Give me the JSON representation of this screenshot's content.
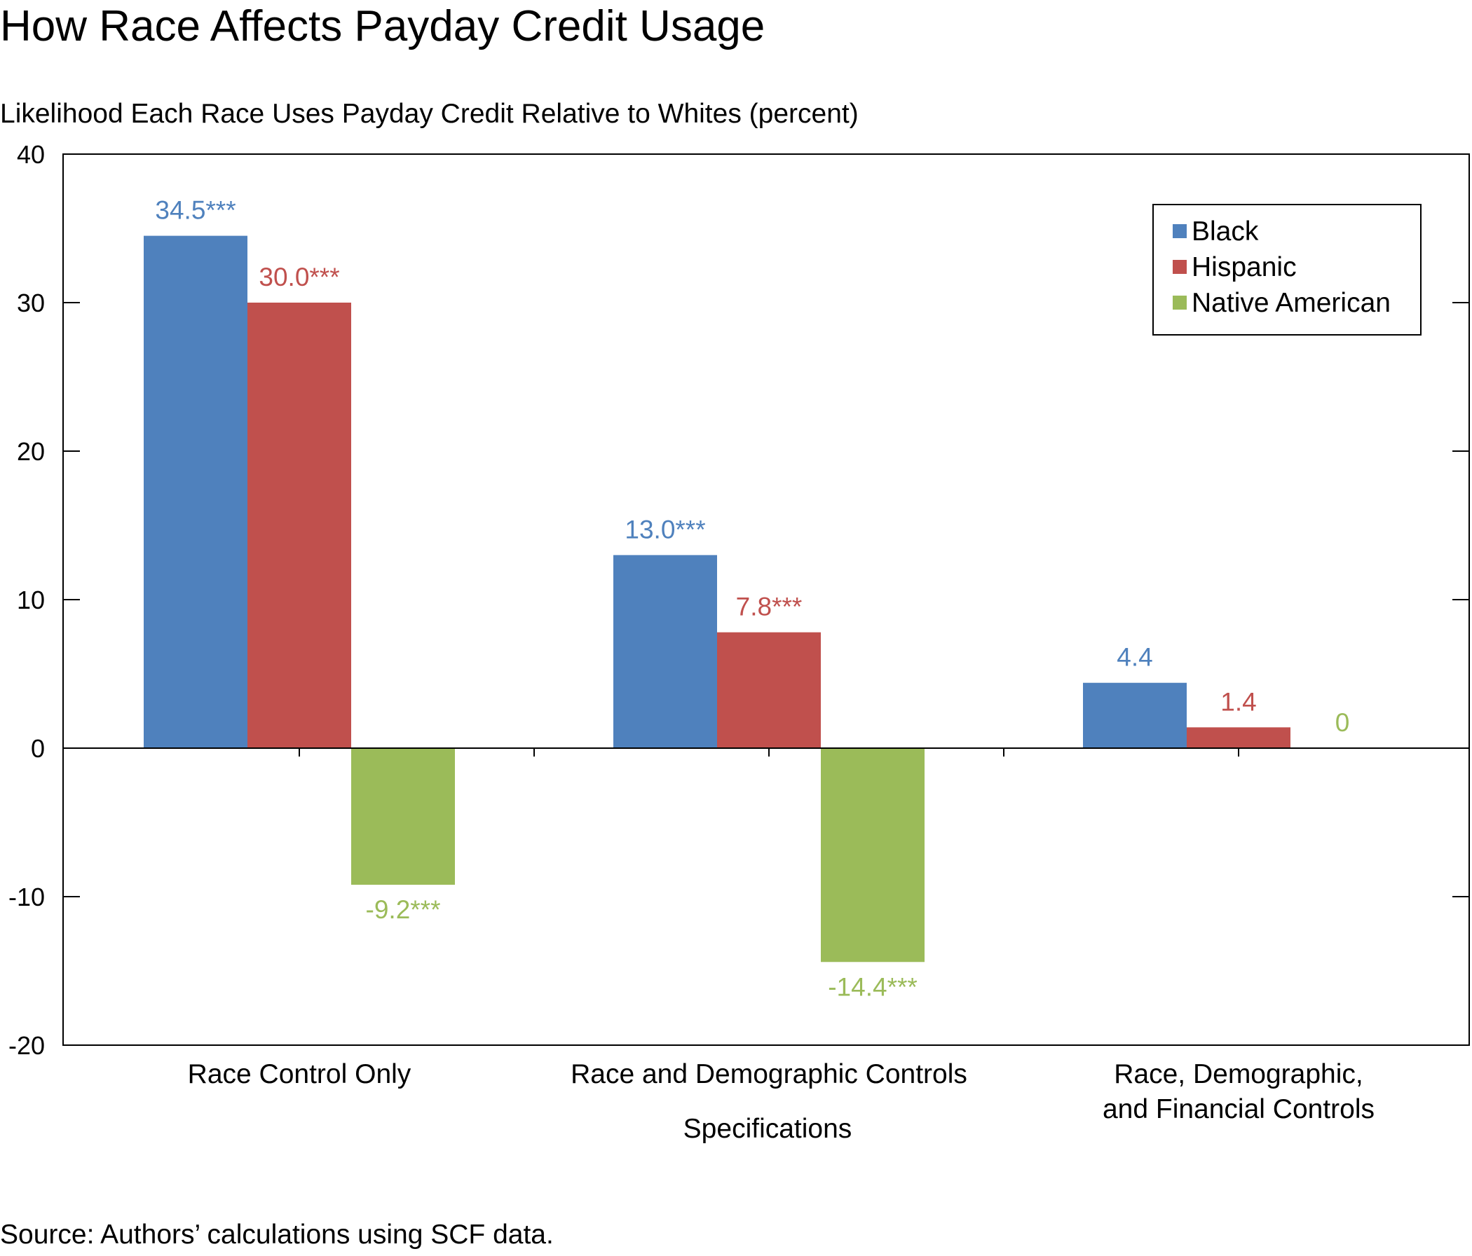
{
  "chart_data": {
    "type": "bar",
    "title": "How Race Affects Payday Credit Usage",
    "subtitle": "Likelihood Each Race Uses Payday Credit Relative to Whites (percent)",
    "xlabel": "Specifications",
    "ylabel": "",
    "source": "Source: Authors’ calculations using SCF data.",
    "ylim": [
      -20,
      40
    ],
    "yticks": [
      40,
      30,
      20,
      10,
      0,
      -10,
      -20
    ],
    "grid": false,
    "legend_position": "top-right",
    "categories": [
      [
        "Race Control Only"
      ],
      [
        "Race and Demographic Controls"
      ],
      [
        "Race, Demographic,",
        "and Financial Controls"
      ]
    ],
    "series": [
      {
        "name": "Black",
        "color": "#4F81BD",
        "values": [
          34.5,
          13.0,
          4.4
        ],
        "labels": [
          "34.5***",
          "13.0***",
          "4.4"
        ]
      },
      {
        "name": "Hispanic",
        "color": "#C0504D",
        "values": [
          30.0,
          7.8,
          1.4
        ],
        "labels": [
          "30.0***",
          "7.8***",
          "1.4"
        ]
      },
      {
        "name": "Native American",
        "color": "#9BBB59",
        "values": [
          -9.2,
          -14.4,
          0
        ],
        "labels": [
          "-9.2***",
          "-14.4***",
          "0"
        ]
      }
    ]
  }
}
